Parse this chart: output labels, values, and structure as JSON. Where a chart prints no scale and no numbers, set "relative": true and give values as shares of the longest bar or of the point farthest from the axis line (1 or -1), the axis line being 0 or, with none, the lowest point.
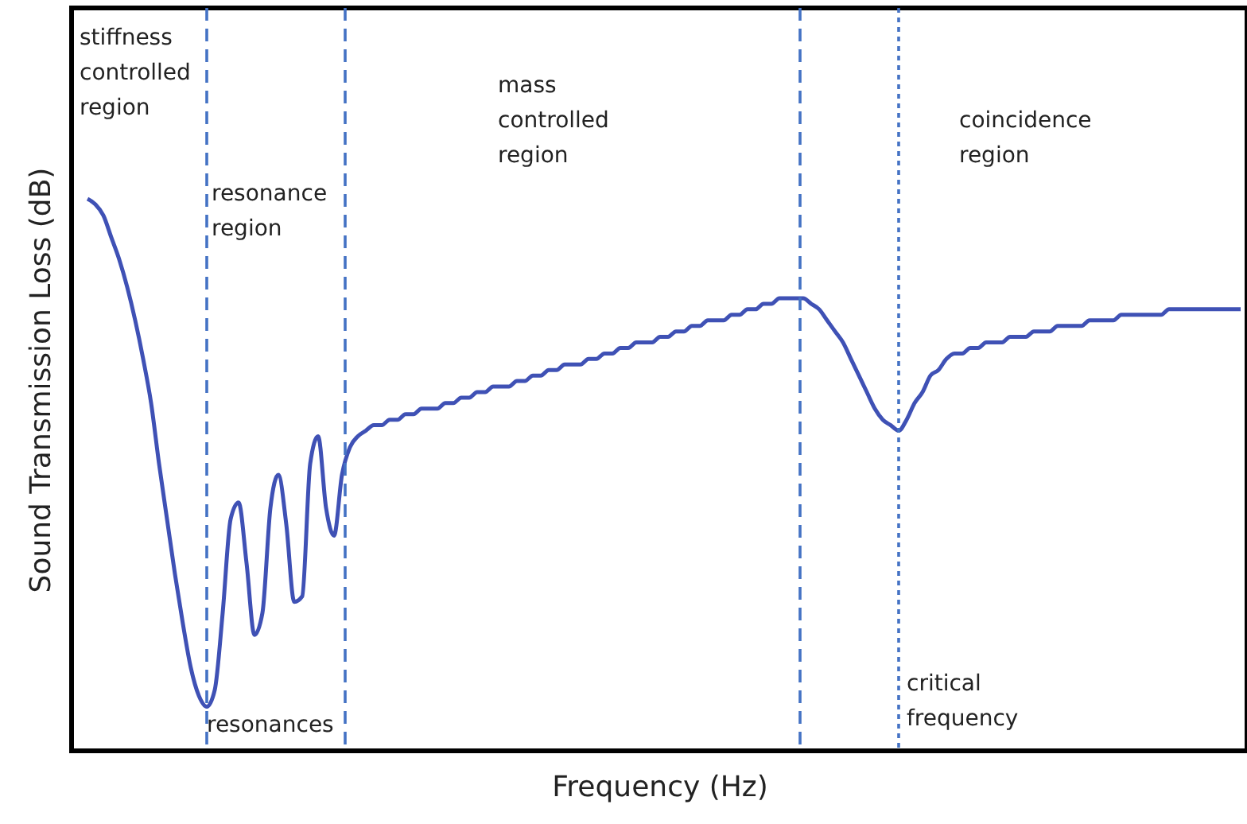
{
  "chart_data": {
    "type": "line",
    "relative": true,
    "xlabel": "Frequency (Hz)",
    "ylabel": "Sound Transmission Loss (dB)",
    "tick_labels": false,
    "categories": [
      null,
      null,
      null,
      null,
      null,
      null,
      null,
      null,
      null,
      null,
      null,
      null,
      null,
      null,
      null,
      null,
      null,
      null,
      null,
      null,
      null,
      null,
      null,
      null,
      null,
      null,
      null,
      null,
      null,
      null,
      null,
      null,
      null,
      null,
      null,
      null,
      null,
      null,
      null,
      null,
      null,
      null,
      null,
      null,
      null,
      null,
      null,
      null,
      null,
      null,
      null,
      null,
      null,
      null,
      null,
      null,
      null,
      null,
      null,
      null,
      null,
      null,
      null,
      null,
      null,
      null,
      null,
      null,
      null,
      null,
      null,
      null,
      null,
      null,
      null,
      null,
      null,
      null,
      null,
      null,
      null,
      null,
      null,
      null,
      null,
      null,
      null,
      null,
      null,
      null,
      null,
      null,
      null,
      null,
      null,
      null,
      null,
      null,
      null,
      null,
      null,
      null,
      null,
      null,
      null,
      null,
      null,
      null,
      null,
      null,
      null,
      null,
      null,
      null,
      null,
      null,
      null,
      null,
      null,
      null,
      null,
      null,
      null,
      null,
      null,
      null,
      null,
      null,
      null,
      null,
      null,
      null,
      null,
      null,
      null,
      null,
      null,
      null,
      null,
      null,
      null,
      null,
      null,
      null,
      null,
      null
    ],
    "series": [
      {
        "color": "#3f51b5",
        "values": [
          1.0,
          0.99,
          0.97,
          0.93,
          0.89,
          0.84,
          0.78,
          0.71,
          0.63,
          0.52,
          0.42,
          0.32,
          0.23,
          0.15,
          0.1,
          0.08,
          0.11,
          0.25,
          0.42,
          0.45,
          0.34,
          0.21,
          0.25,
          0.44,
          0.5,
          0.41,
          0.27,
          0.28,
          0.52,
          0.57,
          0.44,
          0.39,
          0.5,
          0.55,
          0.57,
          0.58,
          0.59,
          0.59,
          0.6,
          0.6,
          0.61,
          0.61,
          0.62,
          0.62,
          0.62,
          0.63,
          0.63,
          0.64,
          0.64,
          0.65,
          0.65,
          0.66,
          0.66,
          0.66,
          0.67,
          0.67,
          0.68,
          0.68,
          0.69,
          0.69,
          0.7,
          0.7,
          0.7,
          0.71,
          0.71,
          0.72,
          0.72,
          0.73,
          0.73,
          0.74,
          0.74,
          0.74,
          0.75,
          0.75,
          0.76,
          0.76,
          0.77,
          0.77,
          0.78,
          0.78,
          0.78,
          0.79,
          0.79,
          0.8,
          0.8,
          0.81,
          0.81,
          0.82,
          0.82,
          0.82,
          0.82,
          0.81,
          0.8,
          0.78,
          0.76,
          0.74,
          0.71,
          0.68,
          0.65,
          0.62,
          0.6,
          0.59,
          0.58,
          0.6,
          0.63,
          0.65,
          0.68,
          0.69,
          0.71,
          0.72,
          0.72,
          0.73,
          0.73,
          0.74,
          0.74,
          0.74,
          0.75,
          0.75,
          0.75,
          0.76,
          0.76,
          0.76,
          0.77,
          0.77,
          0.77,
          0.77,
          0.78,
          0.78,
          0.78,
          0.78,
          0.79,
          0.79,
          0.79,
          0.79,
          0.79,
          0.79,
          0.8,
          0.8,
          0.8,
          0.8,
          0.8,
          0.8,
          0.8,
          0.8,
          0.8,
          0.8
        ]
      }
    ],
    "annotations": [
      "stiffness\ncontrolled\nregion",
      "resonance\nregion",
      "mass\ncontrolled\nregion",
      "coincidence\nregion",
      "resonances",
      "critical\nfrequency"
    ]
  }
}
